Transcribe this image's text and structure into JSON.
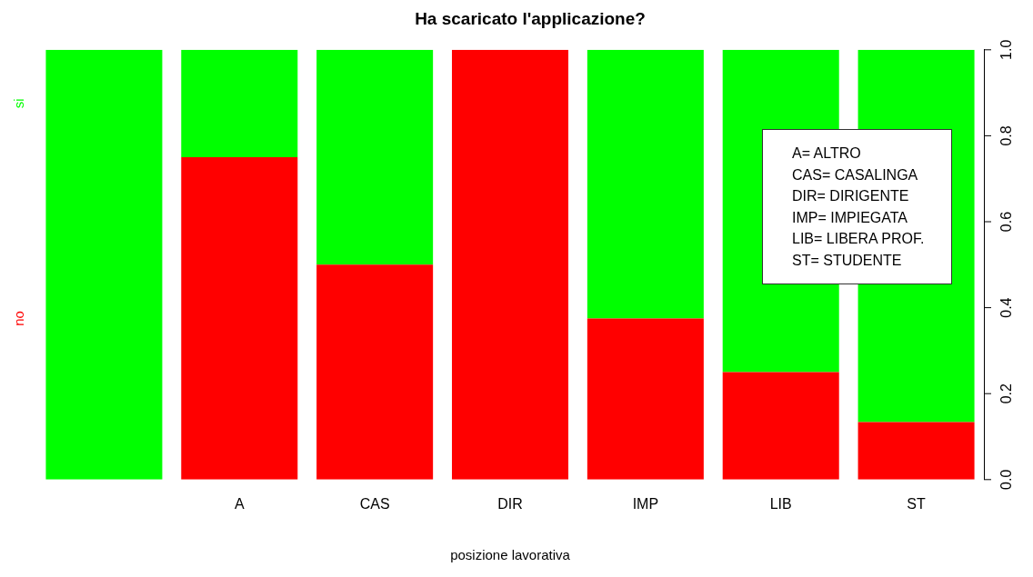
{
  "chart_data": {
    "type": "bar",
    "title": "Ha scaricato l'applicazione?",
    "xlabel": "posizione lavorativa",
    "categories": [
      null,
      "A",
      "CAS",
      "DIR",
      "IMP",
      "LIB",
      "ST"
    ],
    "stacked": true,
    "series": [
      {
        "name": "no",
        "color": "#ff0000",
        "values": [
          0,
          0.75,
          0.5,
          1,
          0.375,
          0.25,
          0.134
        ]
      },
      {
        "name": "si",
        "color": "#00ff00",
        "values": [
          1,
          0.25,
          0.5,
          0,
          0.625,
          0.75,
          0.866
        ]
      }
    ],
    "ylim": [
      0,
      1
    ],
    "yticks": [
      {
        "value": 0,
        "label": "0.0"
      },
      0.2,
      0.4,
      0.6,
      0.8,
      {
        "value": 1,
        "label": "1.0"
      }
    ],
    "annotations": [
      "A= ALTRO",
      "CAS= CASALINGA",
      "DIR= DIRIGENTE",
      "IMP= IMPIEGATA",
      "LIB= LIBERA PROF.",
      "ST= STUDENTE"
    ],
    "grid": false,
    "legend": false
  }
}
